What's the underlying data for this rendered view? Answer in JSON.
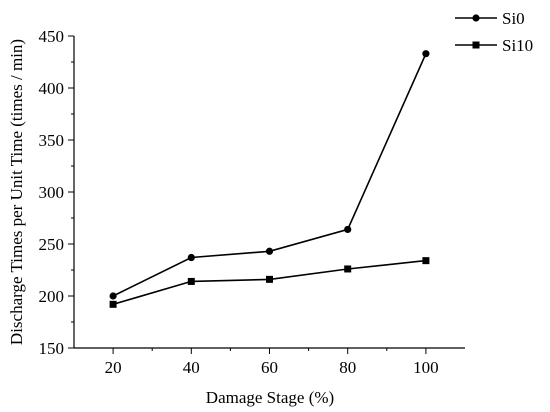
{
  "chart_data": {
    "type": "line",
    "title": "",
    "xlabel": "Damage Stage (%)",
    "ylabel": "Discharge Times per Unit Time (times / min)",
    "x": [
      20,
      40,
      60,
      80,
      100
    ],
    "xlim": [
      10,
      110
    ],
    "ylim": [
      150,
      450
    ],
    "xticks": [
      20,
      40,
      60,
      80,
      100
    ],
    "yticks": [
      150,
      200,
      250,
      300,
      350,
      400,
      450
    ],
    "grid": false,
    "legend_position": "top-right",
    "series": [
      {
        "name": "Si0",
        "marker": "circle",
        "color": "#000000",
        "values": [
          200,
          237,
          243,
          264,
          433
        ]
      },
      {
        "name": "Si10",
        "marker": "square",
        "color": "#000000",
        "values": [
          192,
          214,
          216,
          226,
          234
        ]
      }
    ]
  }
}
